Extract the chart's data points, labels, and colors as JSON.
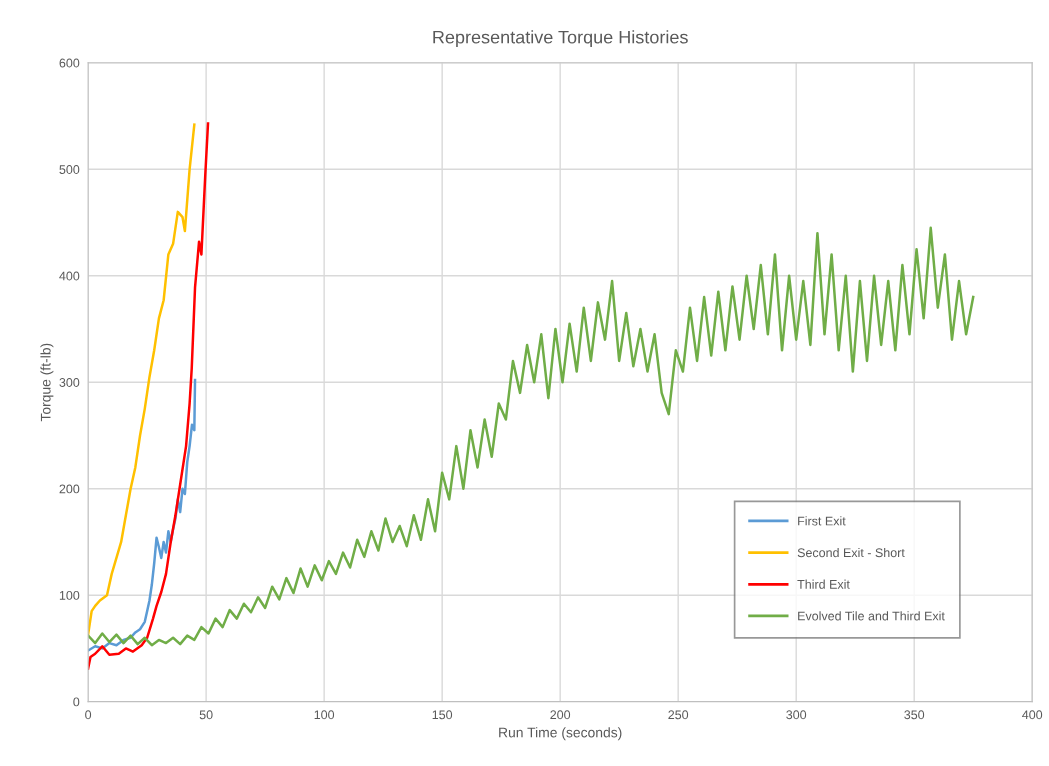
{
  "chart_data": {
    "type": "line",
    "title": "Representative Torque Histories",
    "xlabel": "Run Time (seconds)",
    "ylabel": "Torque (ft-lb)",
    "xlim": [
      0,
      400
    ],
    "xticks": [
      0,
      50,
      100,
      150,
      200,
      250,
      300,
      350,
      400
    ],
    "ylim": [
      0,
      600
    ],
    "yticks": [
      0,
      100,
      200,
      300,
      400,
      500,
      600
    ],
    "grid": true,
    "legend": "bottom right",
    "line_style": "solid",
    "marker": "none",
    "series": [
      {
        "name": "First Exit",
        "color": "#5b9bd5",
        "x": [
          0,
          3,
          6,
          9,
          12,
          15,
          18,
          20,
          22,
          24,
          25,
          26,
          27,
          28,
          29,
          30,
          31,
          32,
          33,
          34,
          35,
          36,
          37,
          38,
          39,
          40,
          41,
          42,
          43,
          44,
          45,
          45.3
        ],
        "values": [
          48,
          52,
          50,
          55,
          53,
          58,
          60,
          65,
          68,
          75,
          85,
          95,
          110,
          130,
          154,
          145,
          135,
          150,
          140,
          160,
          150,
          162,
          172,
          190,
          178,
          200,
          195,
          225,
          240,
          260,
          255,
          302
        ]
      },
      {
        "name": "Second Exit - Short",
        "color": "#ffc000",
        "x": [
          0,
          1.5,
          3,
          5,
          8,
          10,
          12,
          14,
          16,
          18,
          20,
          22,
          24,
          26,
          28,
          30,
          32,
          34,
          36,
          38,
          40,
          41,
          43,
          45
        ],
        "values": [
          63,
          85,
          90,
          95,
          100,
          120,
          135,
          150,
          175,
          200,
          220,
          250,
          275,
          305,
          330,
          360,
          377,
          420,
          430,
          460,
          455,
          442,
          500,
          542
        ]
      },
      {
        "name": "Third Exit",
        "color": "#ff0000",
        "x": [
          0,
          1,
          3,
          6,
          9,
          13,
          16,
          19,
          22.7,
          25,
          27.5,
          29,
          31,
          33,
          35,
          37,
          39,
          41.5,
          43,
          43.9,
          45.3,
          47,
          48,
          49.6,
          50.8
        ],
        "values": [
          31,
          42,
          45,
          52,
          44,
          45,
          50,
          47,
          53,
          60,
          78,
          90,
          103,
          120,
          150,
          175,
          204,
          240,
          280,
          313,
          389,
          432,
          420,
          493,
          543
        ]
      },
      {
        "name": "Evolved Tile and Third Exit",
        "color": "#70ad47",
        "x": [
          0,
          3,
          6,
          9,
          12,
          15,
          18,
          21,
          24,
          27,
          30,
          33,
          36,
          39,
          42,
          45,
          48,
          51,
          54,
          57,
          60,
          63,
          66,
          69,
          72,
          75,
          78,
          81,
          84,
          87,
          90,
          93,
          96,
          99,
          102,
          105,
          108,
          111,
          114,
          117,
          120,
          123,
          126,
          129,
          132,
          135,
          138,
          141,
          144,
          147,
          150,
          153,
          156,
          159,
          162,
          165,
          168,
          171,
          174,
          177,
          180,
          183,
          186,
          189,
          192,
          195,
          198,
          201,
          204,
          207,
          210,
          213,
          216,
          219,
          222,
          225,
          228,
          231,
          234,
          237,
          240,
          243,
          246,
          249,
          252,
          255,
          258,
          261,
          264,
          267,
          270,
          273,
          276,
          279,
          282,
          285,
          288,
          291,
          294,
          297,
          300,
          303,
          306,
          309,
          312,
          315,
          318,
          321,
          324,
          327,
          330,
          333,
          336,
          339,
          342,
          345,
          348,
          351,
          354,
          357,
          360,
          363,
          366,
          369,
          372,
          375
        ],
        "values": [
          62,
          55,
          64,
          56,
          63,
          55,
          62,
          54,
          60,
          53,
          58,
          55,
          60,
          54,
          62,
          58,
          70,
          64,
          78,
          70,
          86,
          78,
          92,
          84,
          98,
          88,
          108,
          96,
          116,
          102,
          125,
          108,
          128,
          114,
          132,
          120,
          140,
          126,
          152,
          136,
          160,
          142,
          172,
          150,
          165,
          146,
          175,
          152,
          190,
          160,
          215,
          190,
          240,
          200,
          255,
          220,
          265,
          230,
          280,
          265,
          320,
          290,
          335,
          300,
          345,
          285,
          350,
          300,
          355,
          310,
          370,
          320,
          375,
          340,
          395,
          320,
          365,
          315,
          350,
          310,
          345,
          290,
          270,
          330,
          310,
          370,
          320,
          380,
          325,
          385,
          330,
          390,
          340,
          400,
          350,
          410,
          345,
          420,
          330,
          400,
          340,
          395,
          335,
          440,
          345,
          420,
          330,
          400,
          310,
          395,
          320,
          400,
          335,
          395,
          330,
          410,
          345,
          425,
          360,
          445,
          370,
          420,
          340,
          395,
          345,
          380
        ]
      }
    ]
  }
}
